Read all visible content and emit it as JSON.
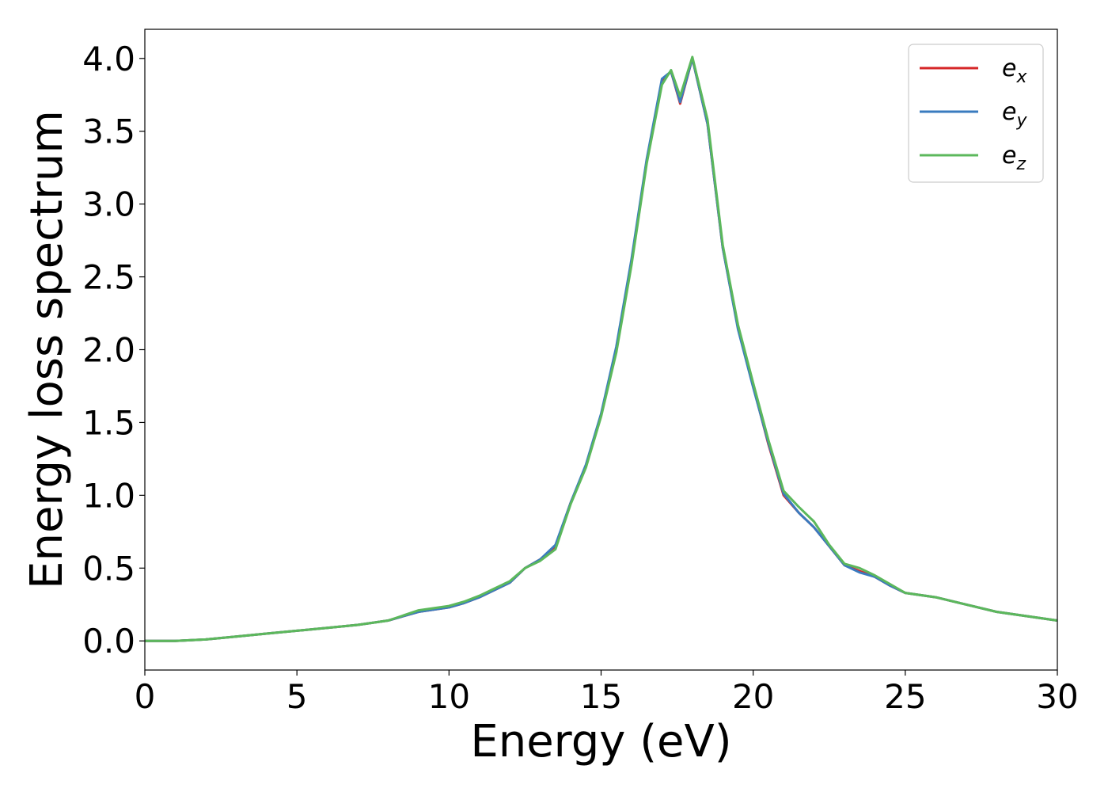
{
  "chart_data": {
    "type": "line",
    "title": "",
    "xlabel": "Energy (eV)",
    "ylabel": "Energy loss spectrum",
    "xlim": [
      0,
      30
    ],
    "ylim": [
      -0.2,
      4.2
    ],
    "xticks": [
      0,
      5,
      10,
      15,
      20,
      25,
      30
    ],
    "xtick_labels": [
      "0",
      "5",
      "10",
      "15",
      "20",
      "25",
      "30"
    ],
    "yticks": [
      0.0,
      0.5,
      1.0,
      1.5,
      2.0,
      2.5,
      3.0,
      3.5,
      4.0
    ],
    "ytick_labels": [
      "0.0",
      "0.5",
      "1.0",
      "1.5",
      "2.0",
      "2.5",
      "3.0",
      "3.5",
      "4.0"
    ],
    "grid": false,
    "legend": {
      "placement": "top-right",
      "entries": [
        {
          "base": "e",
          "sub": "x"
        },
        {
          "base": "e",
          "sub": "y"
        },
        {
          "base": "e",
          "sub": "z"
        }
      ]
    },
    "x": [
      0,
      1,
      2,
      3,
      4,
      5,
      6,
      7,
      8,
      9,
      10,
      10.5,
      11,
      11.5,
      12,
      12.5,
      13,
      13.5,
      14,
      14.5,
      15,
      15.5,
      16,
      16.5,
      17,
      17.3,
      17.6,
      18,
      18.5,
      19,
      19.5,
      20,
      20.5,
      21,
      21.5,
      22,
      22.5,
      23,
      23.5,
      24,
      24.5,
      25,
      26,
      27,
      28,
      29,
      30
    ],
    "series": [
      {
        "name": "e_x",
        "color": "#d62728",
        "values": [
          0.0,
          0.0,
          0.01,
          0.03,
          0.05,
          0.07,
          0.09,
          0.11,
          0.14,
          0.2,
          0.23,
          0.26,
          0.3,
          0.35,
          0.4,
          0.5,
          0.56,
          0.65,
          0.95,
          1.2,
          1.55,
          2.0,
          2.6,
          3.3,
          3.85,
          3.91,
          3.69,
          4.0,
          3.55,
          2.7,
          2.15,
          1.75,
          1.35,
          1.0,
          0.88,
          0.78,
          0.65,
          0.52,
          0.48,
          0.44,
          0.38,
          0.33,
          0.3,
          0.25,
          0.2,
          0.17,
          0.14
        ]
      },
      {
        "name": "e_y",
        "color": "#3a7bbf",
        "values": [
          0.0,
          0.0,
          0.01,
          0.03,
          0.05,
          0.07,
          0.09,
          0.11,
          0.14,
          0.2,
          0.23,
          0.26,
          0.3,
          0.35,
          0.4,
          0.5,
          0.56,
          0.66,
          0.95,
          1.21,
          1.56,
          2.02,
          2.62,
          3.31,
          3.86,
          3.91,
          3.7,
          4.0,
          3.55,
          2.7,
          2.14,
          1.74,
          1.36,
          1.01,
          0.88,
          0.78,
          0.65,
          0.52,
          0.47,
          0.44,
          0.38,
          0.33,
          0.3,
          0.25,
          0.2,
          0.17,
          0.14
        ]
      },
      {
        "name": "e_z",
        "color": "#5cb85c",
        "values": [
          0.0,
          0.0,
          0.01,
          0.03,
          0.05,
          0.07,
          0.09,
          0.11,
          0.14,
          0.21,
          0.24,
          0.27,
          0.31,
          0.36,
          0.41,
          0.5,
          0.55,
          0.63,
          0.94,
          1.19,
          1.54,
          1.98,
          2.58,
          3.28,
          3.82,
          3.92,
          3.74,
          4.01,
          3.58,
          2.72,
          2.17,
          1.77,
          1.38,
          1.03,
          0.92,
          0.82,
          0.66,
          0.53,
          0.5,
          0.45,
          0.39,
          0.33,
          0.3,
          0.25,
          0.2,
          0.17,
          0.14
        ]
      }
    ]
  }
}
